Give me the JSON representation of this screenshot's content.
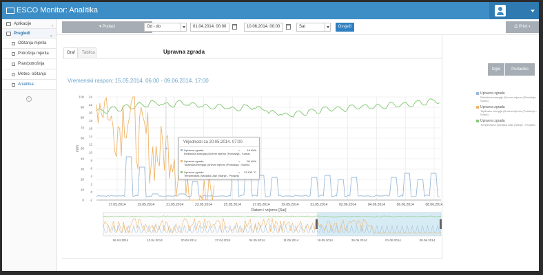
{
  "app": {
    "title": "ESCO Monitor: Analitika"
  },
  "sidebar": {
    "items": [
      {
        "label": "Aplikacije",
        "expand": "‹"
      },
      {
        "label": "Pregledi",
        "expand": "⌄"
      },
      {
        "label": "Očitanja mjerila"
      },
      {
        "label": "Potrošnja mjerila"
      },
      {
        "label": "Plan/potrošnja"
      },
      {
        "label": "Meteo. očitanja"
      },
      {
        "label": "Analitika"
      }
    ]
  },
  "toolbar": {
    "filter_label": "▾ Podaci",
    "range_select": "Od - do",
    "date_from": "01.04.2014. 00:00",
    "date_to": "10.06.2014. 00:00",
    "interval_select": "Sat",
    "refresh_label": "Osvježi",
    "print_label": "⎙ Print ▾"
  },
  "tabs": [
    {
      "label": "Graf"
    },
    {
      "label": "Tablica"
    }
  ],
  "chart_title": "Upravna zgrada",
  "actions": {
    "export_label": "Izgle",
    "data_label": "Podaciko"
  },
  "range_label": "Vremenski raspon: 15.05.2014. 06:00 - 09.06.2014. 17:00",
  "legend": [
    {
      "name": "Upravna zgrada",
      "sub": "Električna energija (Dnevni mjerno (Potrošnja - Suma)",
      "color": "#9bb9d6"
    },
    {
      "name": "Upravna zgrada",
      "sub": "Toplinska energija (Dnevni mjerno (Potrošnja - Suma)",
      "color": "#f0b56a"
    },
    {
      "name": "Upravna zgrada",
      "sub": "Temperatura (Vanjska Ulaz (Stanje - Prosjek)",
      "color": "#8ac97a"
    }
  ],
  "tooltip": {
    "title": "Vrijednosti za 20.05.2014. 07:00",
    "rows": [
      {
        "name": "Upravna zgrada",
        "sub": "Električna energija (Dnevni mjerno (Potrošnja - Suma)",
        "eq": "=",
        "value": "18 kWh",
        "color": "#9bb9d6"
      },
      {
        "name": "Upravna zgrada",
        "sub": "Toplinska energija (Dnevni mjerno (Potrošnja - Suma)",
        "eq": "=",
        "value": "50 kWh",
        "color": "#f0b56a"
      },
      {
        "name": "Upravna zgrada",
        "sub": "Temperatura (Vanjska Ulaz (Stanje - Prosjek)",
        "eq": "=",
        "value": "23.915 °C",
        "color": "#8ac97a"
      }
    ]
  },
  "chart_data": {
    "type": "line",
    "xlabel": "Datum i vrijeme [Sat]",
    "ylabel": "kWh",
    "ylim": [
      0,
      100
    ],
    "y2lim": [
      -2,
      24
    ],
    "yticks": [
      0,
      10,
      20,
      30,
      40,
      50,
      60,
      70,
      80,
      90,
      100
    ],
    "y2ticks": [
      -2,
      0,
      2,
      4,
      6,
      8,
      10,
      12,
      14,
      16,
      18,
      20,
      22,
      24
    ],
    "grid": true,
    "legend_position": "right",
    "x_ticks": [
      "17.05.2014",
      "19.05.2014",
      "21.05.2014",
      "23.05.2014",
      "25.05.2014",
      "27.05.2014",
      "29.05.2014",
      "31.05.2014",
      "02.06.2014",
      "04.06.2014",
      "06.06.2014",
      "08.06.2014"
    ],
    "navigator_ticks": [
      "06.04.2014",
      "13.04.2014",
      "20.04.2014",
      "27.04.2014",
      "04.05.2014",
      "11.05.2014",
      "18.05.2014",
      "25.05.2014",
      "01.06.2014",
      "08.06.2014"
    ],
    "series": [
      {
        "name": "Upravna zgrada",
        "color": "#9bb9d6",
        "axis": "y",
        "days": [
          4,
          4,
          42,
          32,
          6,
          4,
          6,
          18,
          4,
          4,
          30,
          26,
          24,
          22,
          4,
          4,
          22,
          24,
          20,
          22,
          4,
          4,
          22,
          26,
          20,
          26
        ]
      },
      {
        "name": "Upravna zgrada",
        "color": "#f0b56a",
        "axis": "y",
        "days": [
          95,
          72,
          85,
          60,
          45,
          50,
          30,
          10,
          0
        ]
      },
      {
        "name": "Upravna zgrada",
        "color": "#8ac97a",
        "axis": "y2",
        "days": [
          20.5,
          21,
          21.5,
          22,
          22.5,
          22,
          22.5,
          22,
          21.5,
          21.5,
          21,
          21.5,
          21,
          20,
          19.5,
          20,
          20.5,
          21,
          21,
          21.5,
          21.5,
          21.5,
          22,
          22,
          22.5,
          23
        ]
      }
    ]
  }
}
